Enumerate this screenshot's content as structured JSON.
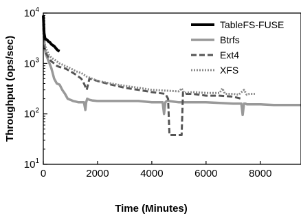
{
  "chart_data": {
    "type": "line",
    "xlabel": "Time (Minutes)",
    "ylabel": "Throughput (ops/sec)",
    "xlim": [
      0,
      9500
    ],
    "ylim": [
      10,
      10000
    ],
    "yscale": "log",
    "x_ticks": [
      0,
      2000,
      4000,
      6000,
      8000
    ],
    "x_tick_labels": [
      "0",
      "2000",
      "4000",
      "6000",
      "8000"
    ],
    "y_ticks": [
      10,
      100,
      1000,
      10000
    ],
    "y_tick_labels": [
      "10",
      "10",
      "10",
      "10"
    ],
    "y_tick_exponents": [
      "1",
      "2",
      "3",
      "4"
    ],
    "grid": false,
    "legend_position": "top-right",
    "series": [
      {
        "name": "TableFS-FUSE",
        "color": "#000000",
        "dash": "solid",
        "width": 4,
        "x": [
          0,
          30,
          60,
          100,
          150,
          200,
          250,
          300,
          350,
          400,
          450,
          500,
          550,
          600
        ],
        "y": [
          9000,
          4000,
          3200,
          3000,
          2900,
          2700,
          2600,
          2400,
          2300,
          2200,
          2050,
          1900,
          1800,
          1750
        ]
      },
      {
        "name": "Btrfs",
        "color": "#999999",
        "dash": "solid",
        "width": 3.5,
        "x": [
          0,
          50,
          100,
          200,
          300,
          400,
          500,
          600,
          700,
          800,
          900,
          1000,
          1100,
          1200,
          1300,
          1400,
          1500,
          1550,
          1580,
          1620,
          1700,
          1800,
          2000,
          2500,
          3000,
          3500,
          4000,
          4400,
          4450,
          4500,
          4550,
          4600,
          5000,
          5500,
          6000,
          6500,
          7000,
          7300,
          7350,
          7400,
          7450,
          7500,
          8000,
          8500,
          9000,
          9500
        ],
        "y": [
          6000,
          2000,
          1500,
          1100,
          800,
          500,
          400,
          380,
          300,
          250,
          200,
          190,
          180,
          175,
          170,
          170,
          170,
          120,
          170,
          200,
          190,
          185,
          180,
          180,
          180,
          180,
          170,
          170,
          100,
          170,
          180,
          180,
          170,
          170,
          170,
          165,
          160,
          160,
          95,
          160,
          160,
          155,
          155,
          150,
          150,
          150
        ]
      },
      {
        "name": "Ext4",
        "color": "#555555",
        "dash": "8,4",
        "width": 3,
        "x": [
          0,
          50,
          100,
          200,
          300,
          400,
          500,
          600,
          800,
          1000,
          1200,
          1400,
          1500,
          1600,
          1700,
          2000,
          2500,
          3000,
          3500,
          4000,
          4500,
          4600,
          4650,
          4700,
          4800,
          5000,
          5100,
          5150,
          5200,
          5500,
          6000,
          6500,
          7000,
          7300
        ],
        "y": [
          5000,
          2000,
          1600,
          1300,
          1100,
          1000,
          900,
          850,
          800,
          700,
          600,
          500,
          400,
          300,
          500,
          450,
          380,
          330,
          300,
          270,
          250,
          200,
          38,
          38,
          38,
          38,
          38,
          270,
          250,
          250,
          230,
          230,
          220,
          200
        ]
      },
      {
        "name": "XFS",
        "color": "#888888",
        "dash": "2,2",
        "width": 3,
        "x": [
          0,
          50,
          100,
          200,
          300,
          400,
          500,
          600,
          800,
          1000,
          1200,
          1400,
          1600,
          1800,
          2000,
          2500,
          3000,
          3500,
          4000,
          4500,
          5000,
          5100,
          5200,
          5500,
          6000,
          6500,
          6600,
          6700,
          7000,
          7200,
          7400,
          7500,
          7600,
          7800
        ],
        "y": [
          4000,
          2500,
          2000,
          1500,
          1300,
          1200,
          1100,
          1000,
          900,
          800,
          700,
          650,
          550,
          500,
          450,
          400,
          360,
          330,
          300,
          290,
          280,
          320,
          260,
          270,
          260,
          260,
          320,
          250,
          250,
          240,
          300,
          240,
          250,
          250
        ]
      }
    ]
  }
}
